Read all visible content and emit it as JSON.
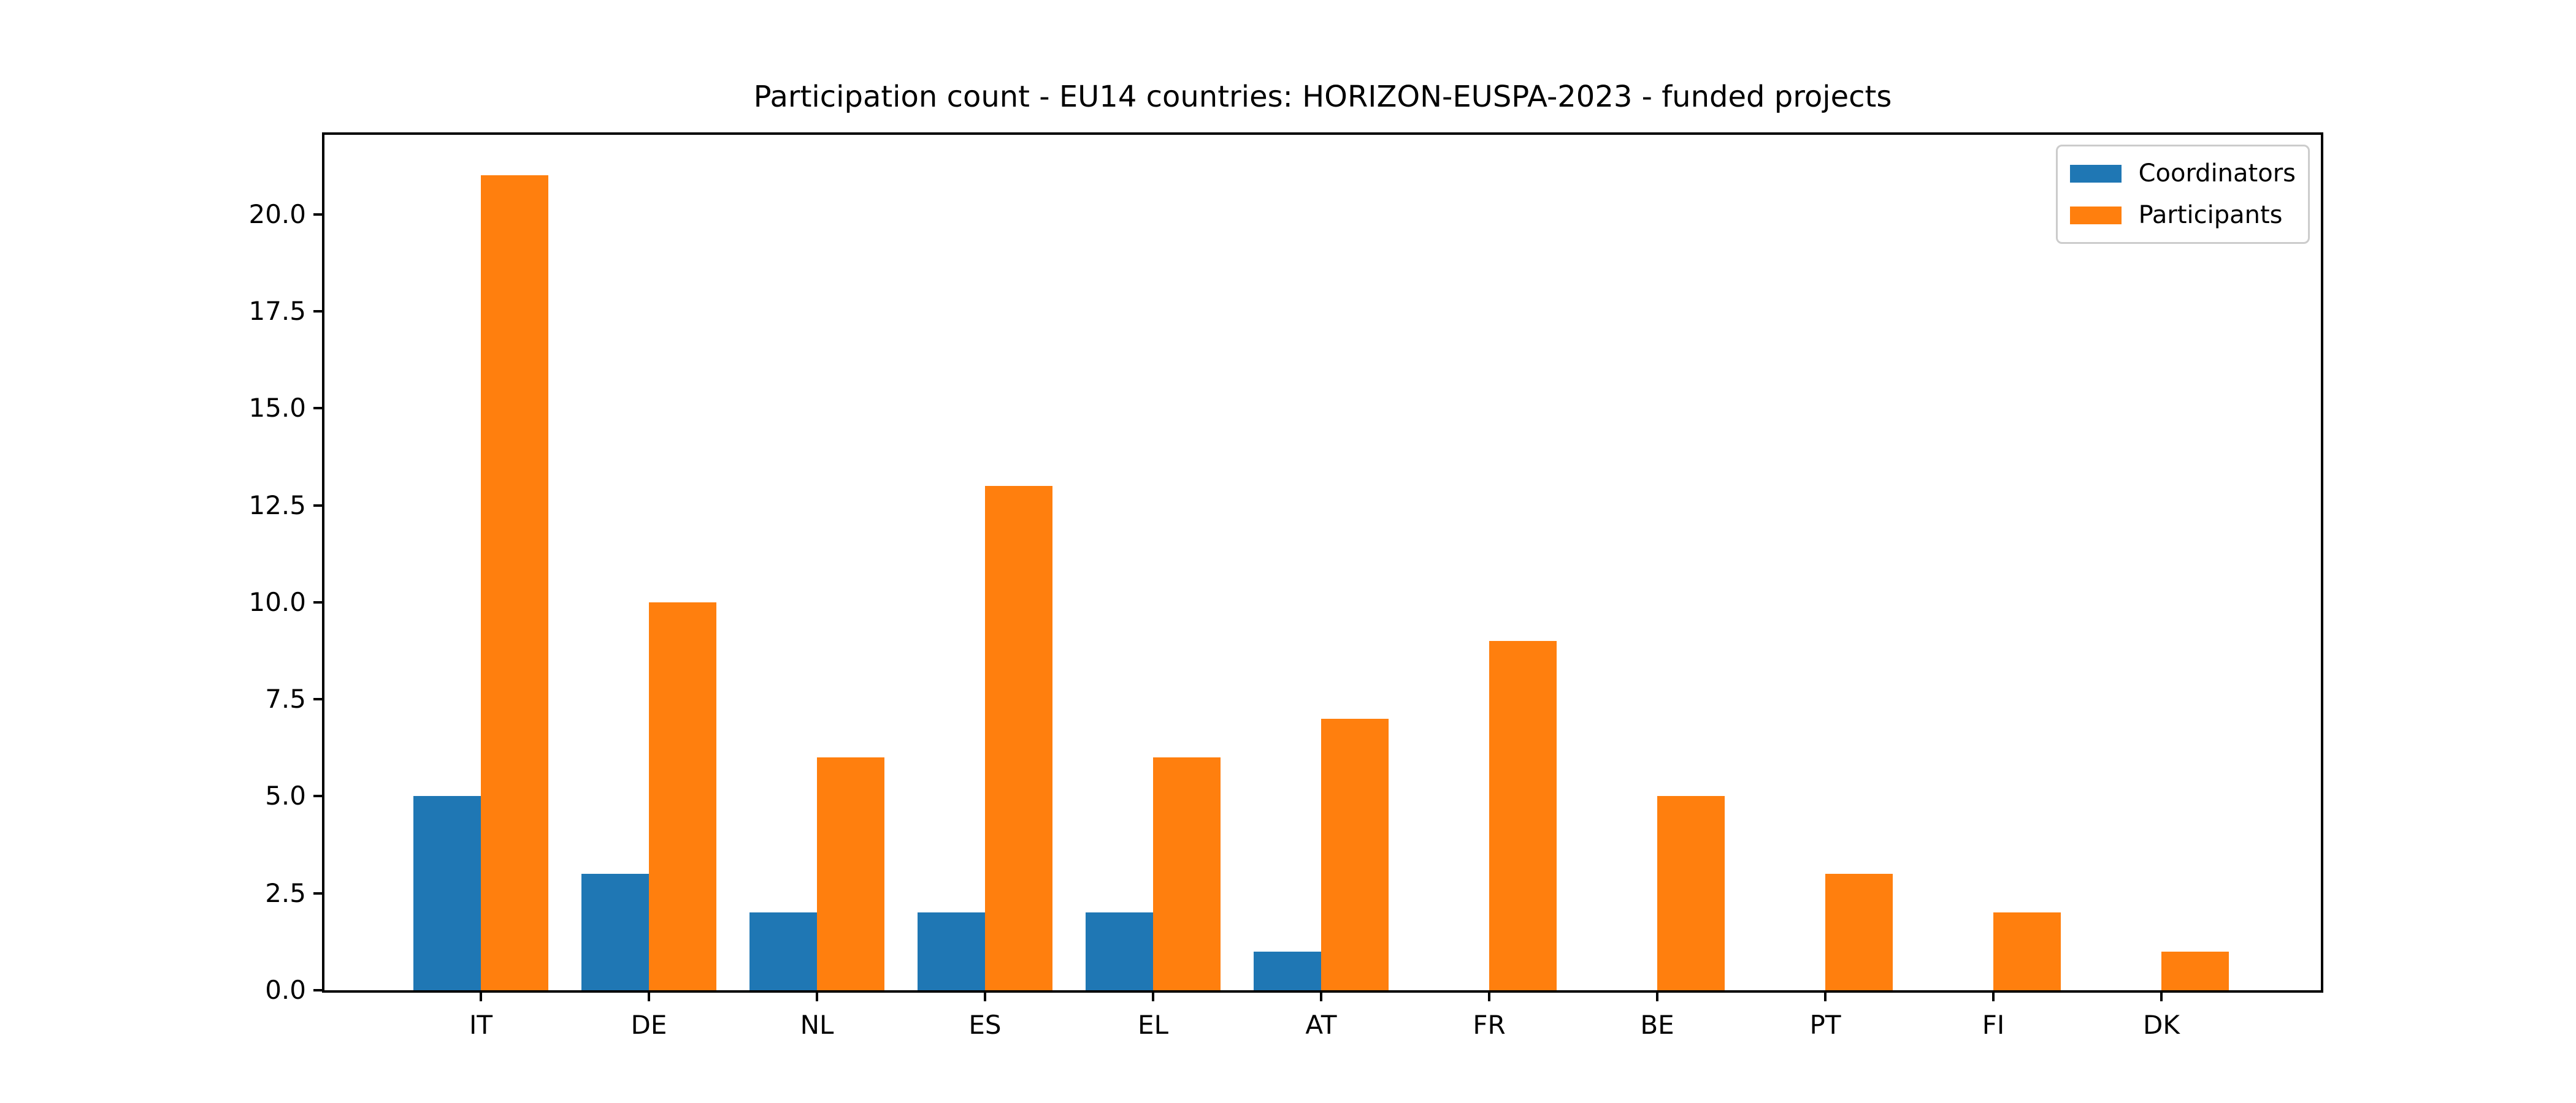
{
  "chart_data": {
    "type": "bar",
    "title": "Participation count - EU14 countries: HORIZON-EUSPA-2023 - funded projects",
    "xlabel": "",
    "ylabel": "",
    "categories": [
      "IT",
      "DE",
      "NL",
      "ES",
      "EL",
      "AT",
      "FR",
      "BE",
      "PT",
      "FI",
      "DK"
    ],
    "series": [
      {
        "name": "Coordinators",
        "color": "#1f77b4",
        "values": [
          5,
          3,
          2,
          2,
          2,
          1,
          0,
          0,
          0,
          0,
          0
        ]
      },
      {
        "name": "Participants",
        "color": "#ff7f0e",
        "values": [
          21,
          10,
          6,
          13,
          6,
          7,
          9,
          5,
          3,
          2,
          1
        ]
      }
    ],
    "ylim": [
      0,
      22.05
    ],
    "yticks": [
      0,
      2.5,
      5,
      7.5,
      10,
      12.5,
      15,
      17.5,
      20
    ],
    "ytick_labels": [
      "0.0",
      "2.5",
      "5.0",
      "7.5",
      "10.0",
      "12.5",
      "15.0",
      "17.5",
      "20.0"
    ],
    "grid": false,
    "legend_position": "upper right",
    "background_color": "#ffffff",
    "spine_color": "#000000"
  }
}
